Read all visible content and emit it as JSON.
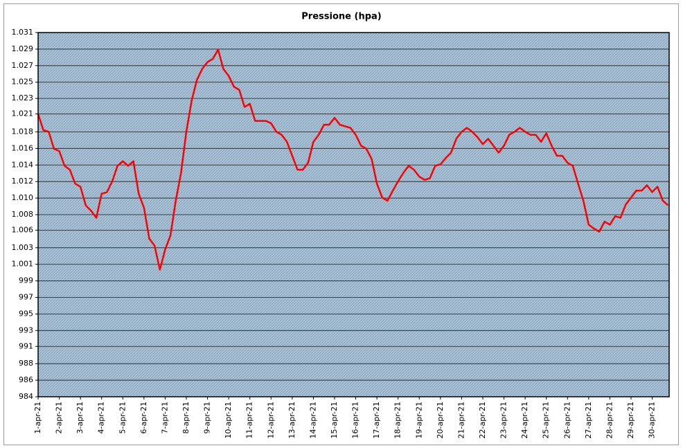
{
  "chart_data": {
    "type": "line",
    "title": "Pressione (hpa)",
    "color": "#ff0000",
    "grid": true,
    "xlim": [
      0,
      29.8
    ],
    "xticks": [
      {
        "value": 0,
        "label": "1-apr-21"
      },
      {
        "value": 1,
        "label": "2-apr-21"
      },
      {
        "value": 2,
        "label": "3-apr-21"
      },
      {
        "value": 3,
        "label": "4-apr-21"
      },
      {
        "value": 4,
        "label": "5-apr-21"
      },
      {
        "value": 5,
        "label": "6-apr-21"
      },
      {
        "value": 6,
        "label": "7-apr-21"
      },
      {
        "value": 7,
        "label": "8-apr-21"
      },
      {
        "value": 8,
        "label": "9-apr-21"
      },
      {
        "value": 9,
        "label": "10-apr-21"
      },
      {
        "value": 10,
        "label": "11-apr-21"
      },
      {
        "value": 11,
        "label": "12-apr-21"
      },
      {
        "value": 12,
        "label": "13-apr-21"
      },
      {
        "value": 13,
        "label": "14-apr-21"
      },
      {
        "value": 14,
        "label": "15-apr-21"
      },
      {
        "value": 15,
        "label": "16-apr-21"
      },
      {
        "value": 16,
        "label": "17-apr-21"
      },
      {
        "value": 17,
        "label": "18-apr-21"
      },
      {
        "value": 18,
        "label": "19-apr-21"
      },
      {
        "value": 19,
        "label": "20-apr-21"
      },
      {
        "value": 20,
        "label": "21-apr-21"
      },
      {
        "value": 21,
        "label": "22-apr-21"
      },
      {
        "value": 22,
        "label": "23-apr-21"
      },
      {
        "value": 23,
        "label": "24-apr-21"
      },
      {
        "value": 24,
        "label": "25-apr-21"
      },
      {
        "value": 25,
        "label": "26-apr-21"
      },
      {
        "value": 26,
        "label": "27-apr-21"
      },
      {
        "value": 27,
        "label": "28-apr-21"
      },
      {
        "value": 28,
        "label": "29-apr-21"
      },
      {
        "value": 29,
        "label": "30-apr-21"
      }
    ],
    "ylim": [
      984,
      1031
    ],
    "yticks": [
      984,
      {
        "value": 986.14,
        "label": "986"
      },
      {
        "value": 988.27,
        "label": "988"
      },
      {
        "value": 990.5,
        "label": "991"
      },
      {
        "value": 992.55,
        "label": "993"
      },
      {
        "value": 994.68,
        "label": "995"
      },
      {
        "value": 996.82,
        "label": "997"
      },
      {
        "value": 998.95,
        "label": "999"
      },
      {
        "value": 1001.09,
        "label": "1.001"
      },
      {
        "value": 1003.23,
        "label": "1.003"
      },
      {
        "value": 1005.5,
        "label": "1.006"
      },
      {
        "value": 1007.5,
        "label": "1.008"
      },
      {
        "value": 1009.64,
        "label": "1.010"
      },
      {
        "value": 1011.77,
        "label": "1.012"
      },
      {
        "value": 1013.91,
        "label": "1.014"
      },
      {
        "value": 1016.05,
        "label": "1.016"
      },
      {
        "value": 1018.18,
        "label": "1.018"
      },
      {
        "value": 1020.5,
        "label": "1.021"
      },
      {
        "value": 1022.5,
        "label": "1.023"
      },
      {
        "value": 1024.59,
        "label": "1.025"
      },
      {
        "value": 1026.73,
        "label": "1.027"
      },
      {
        "value": 1028.86,
        "label": "1.029"
      },
      {
        "value": 1031,
        "label": "1.031"
      }
    ],
    "x": [
      0,
      0.25,
      0.5,
      0.75,
      1,
      1.25,
      1.5,
      1.75,
      2,
      2.25,
      2.5,
      2.75,
      3,
      3.25,
      3.5,
      3.75,
      4,
      4.25,
      4.5,
      4.75,
      5,
      5.25,
      5.5,
      5.75,
      6,
      6.25,
      6.5,
      6.75,
      7,
      7.25,
      7.5,
      7.75,
      8,
      8.25,
      8.5,
      8.75,
      9,
      9.25,
      9.5,
      9.75,
      10,
      10.25,
      10.5,
      10.75,
      11,
      11.25,
      11.5,
      11.75,
      12,
      12.25,
      12.5,
      12.75,
      13,
      13.25,
      13.5,
      13.75,
      14,
      14.25,
      14.5,
      14.75,
      15,
      15.25,
      15.5,
      15.75,
      16,
      16.25,
      16.5,
      16.75,
      17,
      17.25,
      17.5,
      17.75,
      18,
      18.25,
      18.5,
      18.75,
      19,
      19.25,
      19.5,
      19.75,
      20,
      20.25,
      20.5,
      20.75,
      21,
      21.25,
      21.5,
      21.75,
      22,
      22.25,
      22.5,
      22.75,
      23,
      23.25,
      23.5,
      23.75,
      24,
      24.25,
      24.5,
      24.75,
      25,
      25.25,
      25.5,
      25.75,
      26,
      26.25,
      26.5,
      26.75,
      27,
      27.25,
      27.5,
      27.75,
      28,
      28.25,
      28.5,
      28.75,
      29,
      29.25,
      29.5,
      29.75
    ],
    "values": [
      1020.5,
      1018.4,
      1018.2,
      1016.0,
      1015.7,
      1013.8,
      1013.3,
      1011.5,
      1011.1,
      1008.7,
      1008.0,
      1007.1,
      1010.2,
      1010.4,
      1011.8,
      1013.8,
      1014.4,
      1013.8,
      1014.4,
      1010.2,
      1008.4,
      1004.4,
      1003.5,
      1000.4,
      1003.0,
      1004.8,
      1009.3,
      1012.9,
      1018.2,
      1022.2,
      1024.9,
      1026.3,
      1027.2,
      1027.6,
      1028.8,
      1026.3,
      1025.4,
      1024.0,
      1023.6,
      1021.4,
      1021.8,
      1019.6,
      1019.6,
      1019.6,
      1019.3,
      1018.2,
      1017.8,
      1016.9,
      1015.1,
      1013.3,
      1013.3,
      1014.2,
      1016.9,
      1017.8,
      1019.1,
      1019.1,
      1020.0,
      1019.1,
      1018.9,
      1018.7,
      1017.8,
      1016.4,
      1016.0,
      1014.7,
      1011.5,
      1009.7,
      1009.3,
      1010.6,
      1011.8,
      1012.9,
      1013.8,
      1013.3,
      1012.4,
      1012.0,
      1012.2,
      1013.8,
      1014.0,
      1014.8,
      1015.5,
      1017.3,
      1018.2,
      1018.7,
      1018.2,
      1017.5,
      1016.6,
      1017.3,
      1016.4,
      1015.5,
      1016.4,
      1017.8,
      1018.2,
      1018.7,
      1018.2,
      1017.8,
      1017.8,
      1016.9,
      1018.0,
      1016.4,
      1015.1,
      1015.1,
      1014.2,
      1013.8,
      1011.5,
      1009.3,
      1006.2,
      1005.7,
      1005.3,
      1006.6,
      1006.2,
      1007.3,
      1007.1,
      1008.8,
      1009.7,
      1010.6,
      1010.6,
      1011.3,
      1010.4,
      1011.1,
      1009.3,
      1008.7
    ]
  }
}
